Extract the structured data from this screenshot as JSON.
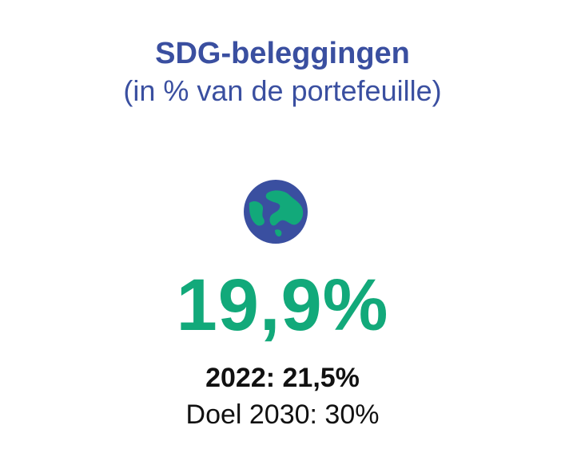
{
  "header": {
    "title": "SDG-beleggingen",
    "subtitle": "(in % van de portefeuille)"
  },
  "icon": {
    "name": "globe-icon",
    "ocean_color": "#3a4fa0",
    "land_color": "#12a97a"
  },
  "stats": {
    "current_value": "19,9%",
    "previous_year": "2022: 21,5%",
    "target": "Doel 2030: 30%"
  },
  "colors": {
    "title": "#3a4fa0",
    "accent": "#12a97a",
    "text": "#111111"
  }
}
